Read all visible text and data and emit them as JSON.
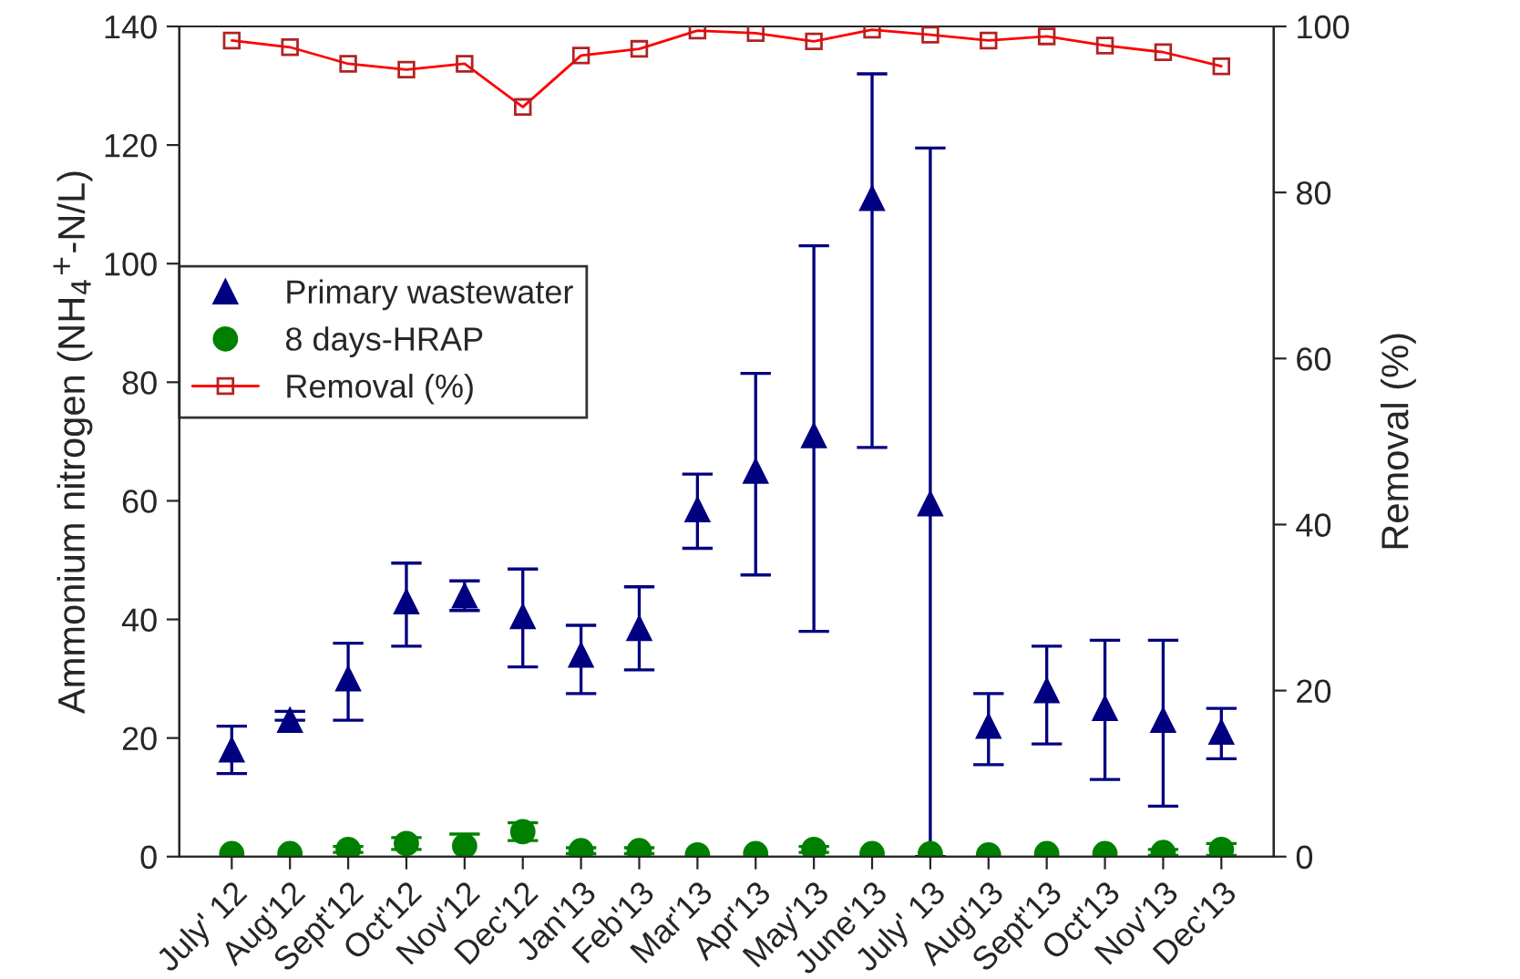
{
  "chart_data": {
    "type": "scatter",
    "ylabel": "Ammonium nitrogen (NH$_{4}$$^{+}$-N/L)",
    "y2label": "Removal (%)",
    "categories": [
      "July' 12",
      "Aug'12",
      "Sept'12",
      "Oct'12",
      "Nov'12",
      "Dec'12",
      "Jan'13",
      "Feb'13",
      "Mar'13",
      "Apr'13",
      "May'13",
      "June'13",
      "July' 13",
      "Aug'13",
      "Sept'13",
      "Oct'13",
      "Nov'13",
      "Dec'13"
    ],
    "series": [
      {
        "name": "Primary wastewater",
        "marker": "triangle",
        "color": "#000080",
        "values": [
          18,
          23,
          30,
          43,
          44,
          40.5,
          34,
          38.5,
          58.5,
          65,
          71,
          111,
          59.5,
          22,
          28,
          25,
          23,
          21
        ],
        "errors": [
          [
            14,
            22
          ],
          [
            23,
            24.5
          ],
          [
            23,
            36
          ],
          [
            35.5,
            49.5
          ],
          [
            41.5,
            46.5
          ],
          [
            32,
            48.5
          ],
          [
            27.5,
            39
          ],
          [
            31.5,
            45.5
          ],
          [
            52,
            64.5
          ],
          [
            47.5,
            81.5
          ],
          [
            38,
            103
          ],
          [
            69,
            132
          ],
          [
            0,
            119.5
          ],
          [
            15.5,
            27.5
          ],
          [
            19,
            35.5
          ],
          [
            13,
            36.5
          ],
          [
            8.5,
            36.5
          ],
          [
            16.5,
            25
          ]
        ]
      },
      {
        "name": "8 days-HRAP",
        "marker": "circle",
        "color": "#008000",
        "values": [
          0.5,
          0.5,
          1.2,
          2.2,
          1.8,
          4.2,
          1,
          1,
          0.3,
          0.5,
          1.2,
          0.5,
          0.5,
          0.3,
          0.5,
          0.5,
          0.7,
          1.2
        ],
        "errors": [
          null,
          null,
          0.5,
          1,
          2,
          1.5,
          0.5,
          0.5,
          null,
          null,
          0.5,
          null,
          null,
          null,
          null,
          null,
          0.5,
          1
        ]
      },
      {
        "name": "Removal (%)",
        "type": "line",
        "axis": "y2",
        "marker": "square",
        "color": "#ff0000",
        "values": [
          98.3,
          97.5,
          95.5,
          94.8,
          95.5,
          90.3,
          96.5,
          97.3,
          99.5,
          99.2,
          98.2,
          99.6,
          99.0,
          98.3,
          98.8,
          97.7,
          96.9,
          95.2
        ]
      }
    ],
    "ylim": [
      0,
      140
    ],
    "yticks": [
      0,
      20,
      40,
      60,
      80,
      100,
      120,
      140
    ],
    "y2lim": [
      0,
      100
    ],
    "y2ticks": [
      0,
      20,
      40,
      60,
      80,
      100
    ],
    "grid": false,
    "legend": "left"
  }
}
